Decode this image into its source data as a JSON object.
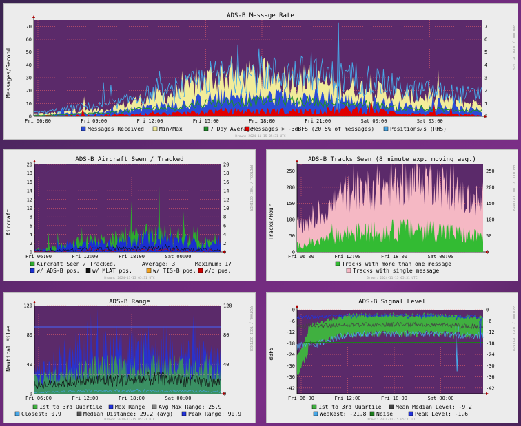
{
  "colors": {
    "plot_bg": "#5b2a6a",
    "grid": "#ff6b6b",
    "panel_bg": "#ececec",
    "messages": "#2b4bd6",
    "minmax": "#f2ec9a",
    "avg7": "#1f8f2a",
    "strong": "#e00000",
    "positions": "#48a8e8",
    "aircraft_seen": "#2eaa2e",
    "adsb_pos": "#1b2fd0",
    "mlat_pos": "#111111",
    "tisb_pos": "#f0a020",
    "wo_pos": "#d00000",
    "tracks_multi": "#33bb33",
    "tracks_single": "#f5b8c4",
    "q13": "#40b040",
    "max_range": "#2233dd",
    "avg_max": "#888888",
    "closest": "#48a8e8",
    "median_dist": "#555555",
    "peak_range": "#2233dd",
    "signal_q13": "#40b040",
    "mean_median": "#444444",
    "weakest": "#48a8e8",
    "noise": "#1c7c1c",
    "peak_level": "#2233dd"
  },
  "time_ticks": [
    "Fri 06:00",
    "Fri 09:00",
    "Fri 12:00",
    "Fri 15:00",
    "Fri 18:00",
    "Fri 21:00",
    "Sat 00:00",
    "Sat 03:00"
  ],
  "time_ticks_short": [
    "Fri 06:00",
    "Fri 12:00",
    "Fri 18:00",
    "Sat 00:00"
  ],
  "drawn_text": "Drawn: 2024-11-15 05:31 UTC",
  "rrdtool_text": "RRDTOOL / TOBI OETIKER",
  "chart_data": [
    {
      "id": "message_rate",
      "type": "area",
      "title": "ADS-B Message Rate",
      "ylabel": "Messages/Second",
      "ylim": [
        0,
        75
      ],
      "y_ticks": [
        0,
        10,
        20,
        30,
        40,
        50,
        60,
        70
      ],
      "y2_ticks": [
        0,
        1,
        2,
        3,
        4,
        5,
        6,
        7
      ],
      "grid": true,
      "legend": [
        {
          "label": "Messages Received",
          "color": "#2b4bd6"
        },
        {
          "label": "Min/Max",
          "color": "#f2ec9a"
        },
        {
          "label": "7 Day Average",
          "color": "#1f8f2a"
        },
        {
          "label": "Messages > -3dBFS (20.5% of messages)",
          "color": "#e00000"
        },
        {
          "label": "Positions/s (RHS)",
          "color": "#48a8e8"
        }
      ],
      "x": [
        "Fri 06:00",
        "Fri 09:00",
        "Fri 12:00",
        "Fri 15:00",
        "Fri 18:00",
        "Fri 21:00",
        "Sat 00:00",
        "Sat 03:00"
      ],
      "series": [
        {
          "name": "Min/Max",
          "values": [
            2,
            5,
            16,
            32,
            30,
            22,
            15,
            10
          ]
        },
        {
          "name": "Messages Received",
          "values": [
            1,
            3,
            8,
            14,
            15,
            12,
            7,
            5
          ]
        },
        {
          "name": "Messages > -3dBFS (20.5% of messages)",
          "values": [
            0.5,
            1,
            2,
            4,
            4,
            5,
            2,
            1
          ]
        },
        {
          "name": "Positions/s (RHS)",
          "values": [
            0.3,
            0.8,
            1.8,
            3.2,
            3.3,
            3.0,
            2.0,
            1.6
          ]
        }
      ],
      "peak": {
        "x": "Fri 21:00",
        "y": 73
      }
    },
    {
      "id": "aircraft",
      "type": "area",
      "title": "ADS-B Aircraft Seen / Tracked",
      "ylabel": "Aircraft",
      "ylim": [
        0,
        20
      ],
      "y_ticks": [
        0,
        2,
        4,
        6,
        8,
        10,
        12,
        14,
        16,
        18,
        20
      ],
      "grid": true,
      "legend_rows": [
        [
          {
            "label": "Aircraft Seen / Tracked,",
            "color": "#2eaa2e"
          },
          {
            "text": "Average:   3"
          },
          {
            "text": "Maximum: 17"
          }
        ],
        [
          {
            "label": "w/ ADS-B pos.",
            "color": "#1b2fd0"
          },
          {
            "label": "w/ MLAT pos.",
            "color": "#111111"
          },
          {
            "label": "w/ TIS-B pos.",
            "color": "#f0a020"
          },
          {
            "label": "w/o pos.",
            "color": "#d00000"
          }
        ]
      ],
      "x": [
        "Fri 06:00",
        "Fri 12:00",
        "Fri 18:00",
        "Sat 00:00"
      ],
      "series": [
        {
          "name": "Aircraft Seen / Tracked",
          "values": [
            0.5,
            2.5,
            4,
            2
          ]
        },
        {
          "name": "w/ ADS-B pos.",
          "values": [
            0.4,
            2,
            3,
            1.5
          ]
        }
      ],
      "average": 3,
      "maximum": 17
    },
    {
      "id": "tracks",
      "type": "area",
      "title": "ADS-B Tracks Seen (8 minute exp. moving avg.)",
      "ylabel": "Tracks/Hour",
      "ylim": [
        0,
        270
      ],
      "y_ticks": [
        0,
        50,
        100,
        150,
        200,
        250
      ],
      "grid": true,
      "legend": [
        {
          "label": "Tracks with more than one message",
          "color": "#33bb33"
        },
        {
          "label": "Tracks with single message",
          "color": "#f5b8c4"
        }
      ],
      "x": [
        "Fri 06:00",
        "Fri 12:00",
        "Fri 18:00",
        "Sat 00:00"
      ],
      "series": [
        {
          "name": "Tracks with more than one message",
          "values": [
            20,
            60,
            70,
            45
          ]
        },
        {
          "name": "Tracks with single message",
          "values": [
            60,
            130,
            150,
            110
          ]
        }
      ],
      "peak": {
        "x": "Fri 18:00",
        "y": 270
      }
    },
    {
      "id": "range",
      "type": "line",
      "title": "ADS-B Range",
      "ylabel": "Nautical Miles",
      "ylim": [
        0,
        120
      ],
      "y_ticks": [
        0,
        40,
        80,
        120
      ],
      "grid": true,
      "legend_rows": [
        [
          {
            "label": "1st to 3rd Quartile",
            "color": "#40b040"
          },
          {
            "label": "Max Range",
            "color": "#2233dd"
          },
          {
            "label": "Avg Max Range:  25.9",
            "color": "#888888"
          }
        ],
        [
          {
            "label": "Closest:   0.9",
            "color": "#48a8e8"
          },
          {
            "label": "Median Distance:  29.2 (avg)",
            "color": "#555555"
          },
          {
            "label": "Peak Range:  90.9",
            "color": "#2233dd"
          }
        ]
      ],
      "x": [
        "Fri 06:00",
        "Fri 12:00",
        "Fri 18:00",
        "Sat 00:00"
      ],
      "series": [
        {
          "name": "Max Range",
          "values": [
            30,
            55,
            60,
            45
          ]
        },
        {
          "name": "1st to 3rd Quartile",
          "values": [
            20,
            35,
            38,
            30
          ]
        }
      ],
      "avg_max_range": 25.9,
      "closest": 0.9,
      "median_distance": 29.2,
      "peak_range": 90.9
    },
    {
      "id": "signal",
      "type": "line",
      "title": "ADS-B Signal Level",
      "ylabel": "dBFS",
      "ylim": [
        -45,
        0
      ],
      "y_ticks": [
        0,
        -6,
        -12,
        -18,
        -24,
        -30,
        -36,
        -42
      ],
      "grid": true,
      "legend_rows": [
        [
          {
            "label": "1st to 3rd Quartile",
            "color": "#40b040"
          },
          {
            "label": "Mean Median Level:  -9.2",
            "color": "#444444"
          }
        ],
        [
          {
            "label": "Weakest:  -21.8",
            "color": "#48a8e8"
          },
          {
            "label": "Noise",
            "color": "#1c7c1c"
          },
          {
            "label": "Peak Level:  -1.6",
            "color": "#2233dd"
          }
        ]
      ],
      "x": [
        "Fri 06:00",
        "Fri 12:00",
        "Fri 18:00",
        "Sat 00:00"
      ],
      "series": [
        {
          "name": "1st to 3rd Quartile",
          "values": [
            -12,
            -6,
            -6,
            -7
          ]
        },
        {
          "name": "Noise",
          "values": [
            -17,
            -17,
            -17,
            -17
          ]
        },
        {
          "name": "Weakest",
          "values": [
            -20,
            -13,
            -13,
            -14
          ]
        }
      ],
      "mean_median_level": -9.2,
      "weakest": -21.8,
      "peak_level": -1.6
    }
  ]
}
